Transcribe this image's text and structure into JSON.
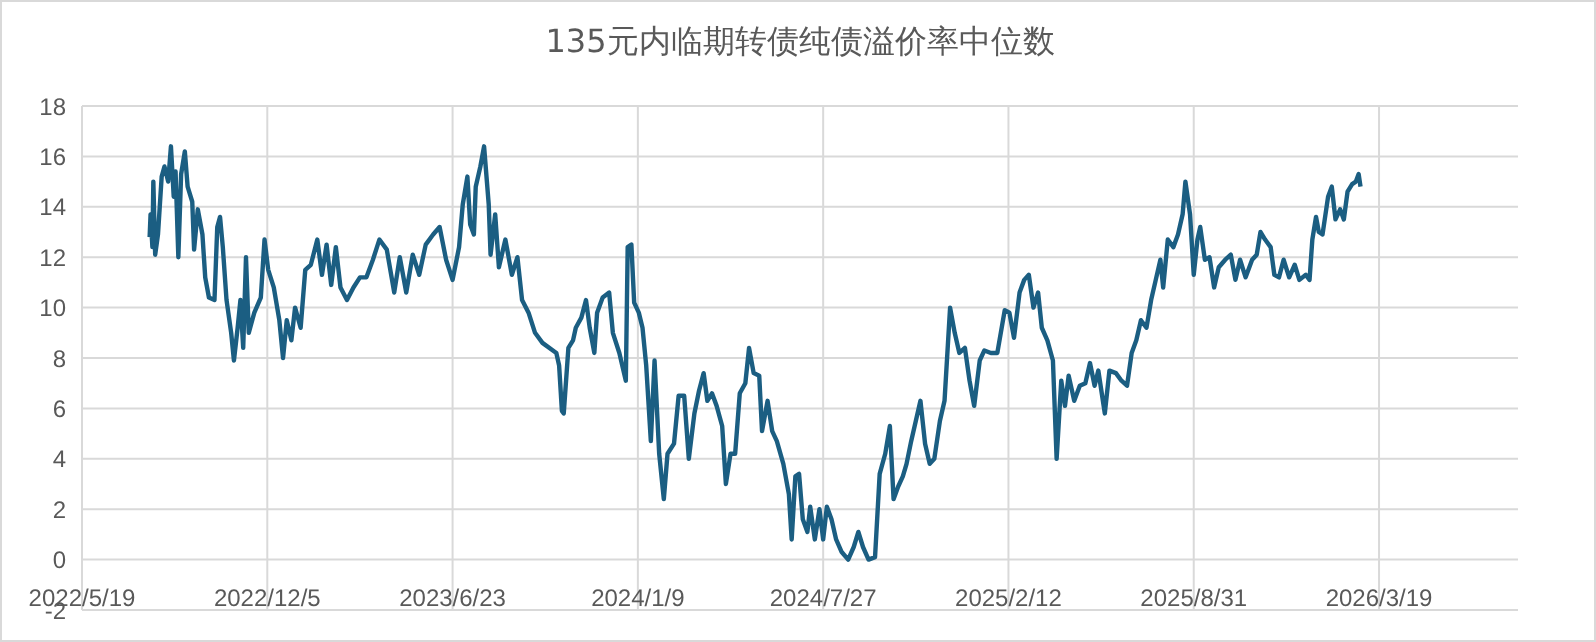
{
  "chart_data": {
    "type": "line",
    "title": "135元内临期转债纯债溢价率中位数",
    "grid": true,
    "xlim": [
      "2022-05-19",
      "2026-08-16"
    ],
    "xticks": [
      {
        "value": "2022-05-19",
        "label": "2022/5/19"
      },
      {
        "value": "2022-12-05",
        "label": "2022/12/5"
      },
      {
        "value": "2023-06-23",
        "label": "2023/6/23"
      },
      {
        "value": "2024-01-09",
        "label": "2024/1/9"
      },
      {
        "value": "2024-07-27",
        "label": "2024/7/27"
      },
      {
        "value": "2025-02-12",
        "label": "2025/2/12"
      },
      {
        "value": "2025-08-31",
        "label": "2025/8/31"
      },
      {
        "value": "2026-03-19",
        "label": "2026/3/19"
      }
    ],
    "ylim": [
      -2,
      18
    ],
    "yticks": [
      -2,
      0,
      2,
      4,
      6,
      8,
      10,
      12,
      14,
      16,
      18
    ],
    "x": [
      "2022-07-31",
      "2022-08-01",
      "2022-08-03",
      "2022-08-04",
      "2022-08-06",
      "2022-08-09",
      "2022-08-13",
      "2022-08-16",
      "2022-08-20",
      "2022-08-23",
      "2022-08-26",
      "2022-08-28",
      "2022-08-31",
      "2022-09-03",
      "2022-09-07",
      "2022-09-10",
      "2022-09-15",
      "2022-09-17",
      "2022-09-21",
      "2022-09-26",
      "2022-09-29",
      "2022-10-03",
      "2022-10-09",
      "2022-10-12",
      "2022-10-15",
      "2022-10-18",
      "2022-10-22",
      "2022-10-27",
      "2022-10-30",
      "2022-11-03",
      "2022-11-06",
      "2022-11-09",
      "2022-11-12",
      "2022-11-15",
      "2022-11-21",
      "2022-11-28",
      "2022-12-02",
      "2022-12-06",
      "2022-12-12",
      "2022-12-18",
      "2022-12-22",
      "2022-12-26",
      "2022-12-31",
      "2023-01-04",
      "2023-01-10",
      "2023-01-15",
      "2023-01-21",
      "2023-01-28",
      "2023-02-02",
      "2023-02-07",
      "2023-02-12",
      "2023-02-17",
      "2023-02-22",
      "2023-03-01",
      "2023-03-08",
      "2023-03-15",
      "2023-03-22",
      "2023-03-29",
      "2023-04-05",
      "2023-04-13",
      "2023-04-21",
      "2023-04-27",
      "2023-05-04",
      "2023-05-11",
      "2023-05-18",
      "2023-05-25",
      "2023-06-02",
      "2023-06-09",
      "2023-06-16",
      "2023-06-23",
      "2023-06-30",
      "2023-07-04",
      "2023-07-09",
      "2023-07-12",
      "2023-07-16",
      "2023-07-18",
      "2023-07-23",
      "2023-07-27",
      "2023-08-01",
      "2023-08-03",
      "2023-08-08",
      "2023-08-12",
      "2023-08-19",
      "2023-08-26",
      "2023-09-01",
      "2023-09-06",
      "2023-09-13",
      "2023-09-20",
      "2023-09-28",
      "2023-10-13",
      "2023-10-16",
      "2023-10-19",
      "2023-10-21",
      "2023-10-26",
      "2023-10-31",
      "2023-11-03",
      "2023-11-09",
      "2023-11-14",
      "2023-11-18",
      "2023-11-23",
      "2023-11-26",
      "2023-12-02",
      "2023-12-09",
      "2023-12-13",
      "2023-12-20",
      "2023-12-27",
      "2023-12-29",
      "2024-01-02",
      "2024-01-05",
      "2024-01-10",
      "2024-01-14",
      "2024-01-18",
      "2024-01-23",
      "2024-01-27",
      "2024-02-01",
      "2024-02-06",
      "2024-02-10",
      "2024-02-17",
      "2024-02-22",
      "2024-02-28",
      "2024-03-04",
      "2024-03-10",
      "2024-03-15",
      "2024-03-20",
      "2024-03-24",
      "2024-03-29",
      "2024-04-03",
      "2024-04-09",
      "2024-04-13",
      "2024-04-18",
      "2024-04-23",
      "2024-04-28",
      "2024-05-04",
      "2024-05-08",
      "2024-05-13",
      "2024-05-19",
      "2024-05-22",
      "2024-05-28",
      "2024-06-02",
      "2024-06-07",
      "2024-06-14",
      "2024-06-20",
      "2024-06-23",
      "2024-06-27",
      "2024-07-01",
      "2024-07-05",
      "2024-07-10",
      "2024-07-13",
      "2024-07-18",
      "2024-07-23",
      "2024-07-27",
      "2024-07-31",
      "2024-08-05",
      "2024-08-10",
      "2024-08-16",
      "2024-08-23",
      "2024-08-29",
      "2024-09-03",
      "2024-09-08",
      "2024-09-14",
      "2024-09-21",
      "2024-09-26",
      "2024-10-02",
      "2024-10-07",
      "2024-10-11",
      "2024-10-16",
      "2024-10-21",
      "2024-10-25",
      "2024-10-30",
      "2024-11-04",
      "2024-11-09",
      "2024-11-14",
      "2024-11-19",
      "2024-11-24",
      "2024-11-30",
      "2024-12-05",
      "2024-12-11",
      "2024-12-16",
      "2024-12-21",
      "2024-12-27",
      "2025-01-01",
      "2025-01-06",
      "2025-01-12",
      "2025-01-17",
      "2025-01-24",
      "2025-01-31",
      "2025-02-08",
      "2025-02-13",
      "2025-02-18",
      "2025-02-24",
      "2025-03-01",
      "2025-03-06",
      "2025-03-11",
      "2025-03-16",
      "2025-03-20",
      "2025-03-26",
      "2025-04-01",
      "2025-04-05",
      "2025-04-10",
      "2025-04-14",
      "2025-04-18",
      "2025-04-24",
      "2025-04-30",
      "2025-05-06",
      "2025-05-11",
      "2025-05-16",
      "2025-05-20",
      "2025-05-27",
      "2025-06-01",
      "2025-06-08",
      "2025-06-14",
      "2025-06-20",
      "2025-06-25",
      "2025-06-30",
      "2025-07-05",
      "2025-07-11",
      "2025-07-16",
      "2025-07-21",
      "2025-07-26",
      "2025-07-29",
      "2025-08-03",
      "2025-08-09",
      "2025-08-14",
      "2025-08-19",
      "2025-08-22",
      "2025-08-27",
      "2025-08-31",
      "2025-09-04",
      "2025-09-07",
      "2025-09-12",
      "2025-09-17",
      "2025-09-22",
      "2025-09-27",
      "2025-10-04",
      "2025-10-10",
      "2025-10-15",
      "2025-10-20",
      "2025-10-26",
      "2025-11-02",
      "2025-11-07",
      "2025-11-11",
      "2025-11-16",
      "2025-11-22",
      "2025-11-26",
      "2025-12-01",
      "2025-12-06",
      "2025-12-12",
      "2025-12-18",
      "2025-12-23",
      "2025-12-30",
      "2026-01-03",
      "2026-01-06",
      "2026-01-10",
      "2026-01-13",
      "2026-01-17",
      "2026-01-23",
      "2026-01-27",
      "2026-01-31",
      "2026-02-05",
      "2026-02-09",
      "2026-02-13",
      "2026-02-18",
      "2026-02-22",
      "2026-02-25",
      "2026-02-27"
    ],
    "series": [
      {
        "color": "#1b5e82",
        "values": [
          12.8,
          13.7,
          12.4,
          15.0,
          12.1,
          12.9,
          15.2,
          15.6,
          15.0,
          16.4,
          14.4,
          15.4,
          12.0,
          15.3,
          16.2,
          14.8,
          14.2,
          12.3,
          13.9,
          12.9,
          11.2,
          10.4,
          10.3,
          13.2,
          13.6,
          12.4,
          10.3,
          9.0,
          7.9,
          9.2,
          10.3,
          8.4,
          12.0,
          9.0,
          9.8,
          10.4,
          12.7,
          11.5,
          10.8,
          9.5,
          8.0,
          9.5,
          8.7,
          10.0,
          9.2,
          11.5,
          11.7,
          12.7,
          11.3,
          12.5,
          10.9,
          12.4,
          10.8,
          10.3,
          10.8,
          11.2,
          11.2,
          11.9,
          12.7,
          12.3,
          10.6,
          12.0,
          10.6,
          12.1,
          11.3,
          12.5,
          12.9,
          13.2,
          11.9,
          11.1,
          12.4,
          14.1,
          15.2,
          13.3,
          12.9,
          14.8,
          15.6,
          16.4,
          14.1,
          12.1,
          13.7,
          11.6,
          12.7,
          11.3,
          12.0,
          10.3,
          9.8,
          9.0,
          8.6,
          8.2,
          7.7,
          5.9,
          5.8,
          8.4,
          8.7,
          9.2,
          9.6,
          10.3,
          9.2,
          8.2,
          9.8,
          10.4,
          10.6,
          9.0,
          8.2,
          7.1,
          12.4,
          12.5,
          10.2,
          9.8,
          9.2,
          7.7,
          4.7,
          7.9,
          4.2,
          2.4,
          4.2,
          4.6,
          6.5,
          6.5,
          4.0,
          5.8,
          6.7,
          7.4,
          6.3,
          6.6,
          6.1,
          5.3,
          3.0,
          4.2,
          4.2,
          6.6,
          7.0,
          8.4,
          7.4,
          7.3,
          5.1,
          6.3,
          5.1,
          4.7,
          3.8,
          2.6,
          0.8,
          3.3,
          3.4,
          1.6,
          1.1,
          2.1,
          0.8,
          2.0,
          0.8,
          2.1,
          1.6,
          0.8,
          0.3,
          0.0,
          0.5,
          1.1,
          0.5,
          0.0,
          0.1,
          3.4,
          4.2,
          5.3,
          2.4,
          2.9,
          3.3,
          3.8,
          4.7,
          5.5,
          6.3,
          4.6,
          3.8,
          4.0,
          5.5,
          6.3,
          10.0,
          9.0,
          8.2,
          8.4,
          7.1,
          6.1,
          7.9,
          8.3,
          8.2,
          8.2,
          9.9,
          9.8,
          8.8,
          10.6,
          11.1,
          11.3,
          10.0,
          10.6,
          9.2,
          8.7,
          7.9,
          4.0,
          7.1,
          6.1,
          7.3,
          6.3,
          6.9,
          7.0,
          7.8,
          6.9,
          7.5,
          5.8,
          7.5,
          7.4,
          7.1,
          6.9,
          8.2,
          8.7,
          9.5,
          9.2,
          10.3,
          11.1,
          11.9,
          10.8,
          12.7,
          12.4,
          12.9,
          13.7,
          15.0,
          13.7,
          11.3,
          12.7,
          13.2,
          11.9,
          12.0,
          10.8,
          11.6,
          11.9,
          12.1,
          11.1,
          11.9,
          11.2,
          11.9,
          12.1,
          13.0,
          12.7,
          12.4,
          11.3,
          11.2,
          11.9,
          11.2,
          11.7,
          11.1,
          11.3,
          11.1,
          12.7,
          13.6,
          13.0,
          12.9,
          14.4,
          14.8,
          13.5,
          13.9,
          13.5,
          14.6,
          14.9,
          15.0,
          15.3,
          14.8
        ]
      }
    ]
  }
}
